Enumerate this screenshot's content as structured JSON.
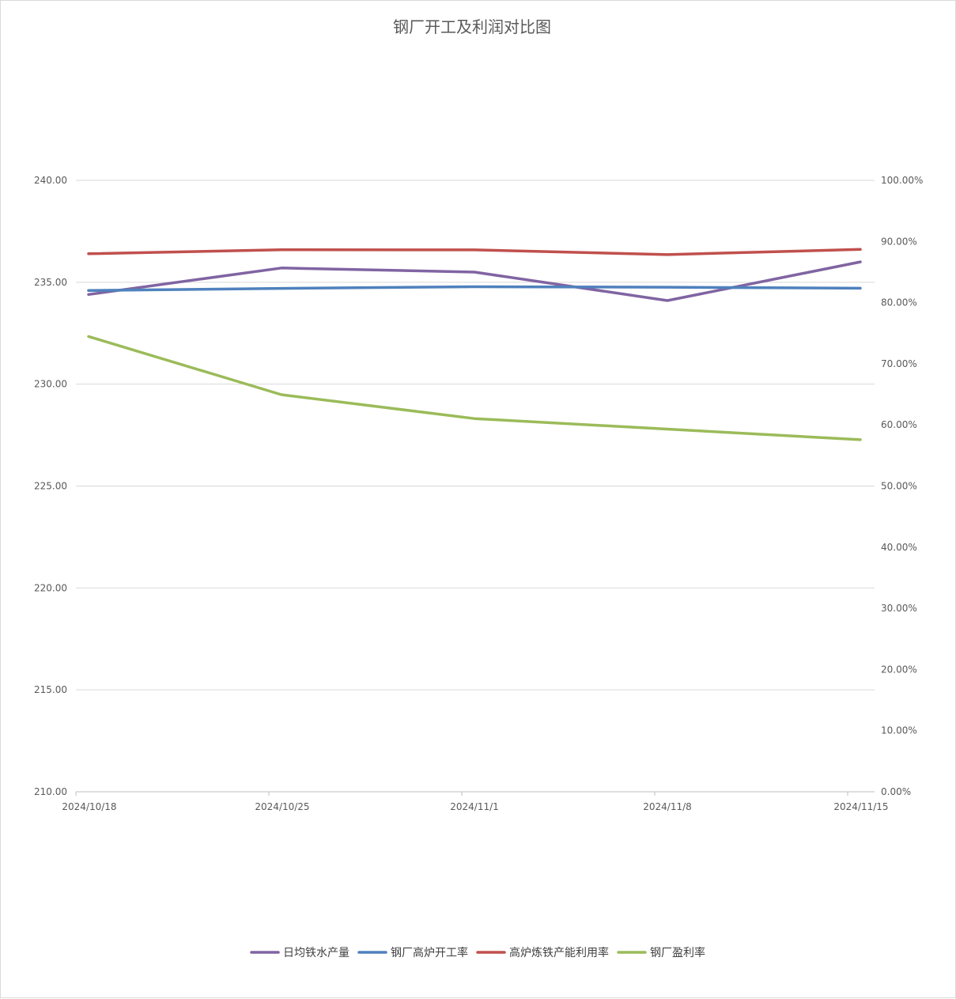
{
  "chart_data": {
    "type": "line",
    "title": "钢厂开工及利润对比图",
    "categories": [
      "2024/10/18",
      "2024/10/25",
      "2024/11/1",
      "2024/11/8",
      "2024/11/15"
    ],
    "y_left": {
      "ylim": [
        210,
        240
      ],
      "ticks": [
        "210.00",
        "215.00",
        "220.00",
        "225.00",
        "230.00",
        "235.00",
        "240.00"
      ]
    },
    "y_right": {
      "ylim": [
        0,
        1
      ],
      "ticks": [
        "0.00%",
        "10.00%",
        "20.00%",
        "30.00%",
        "40.00%",
        "50.00%",
        "60.00%",
        "70.00%",
        "80.00%",
        "90.00%",
        "100.00%"
      ]
    },
    "grid": true,
    "legend_position": "bottom",
    "series": [
      {
        "name": "日均铁水产量",
        "axis": "left",
        "color": "#8064a2",
        "values": [
          234.4,
          235.7,
          235.5,
          234.1,
          236.0
        ]
      },
      {
        "name": "钢厂高炉开工率",
        "axis": "right",
        "color": "#4f81bd",
        "values": [
          0.8198,
          0.8233,
          0.826,
          0.8252,
          0.8236
        ]
      },
      {
        "name": "高炉炼铁产能利用率",
        "axis": "right",
        "color": "#c0504d",
        "values": [
          0.88,
          0.8864,
          0.8863,
          0.8785,
          0.887
        ]
      },
      {
        "name": "钢厂盈利率",
        "axis": "right",
        "color": "#9bbb59",
        "values": [
          0.7446,
          0.6494,
          0.6104,
          0.5931,
          0.5758
        ]
      }
    ]
  }
}
